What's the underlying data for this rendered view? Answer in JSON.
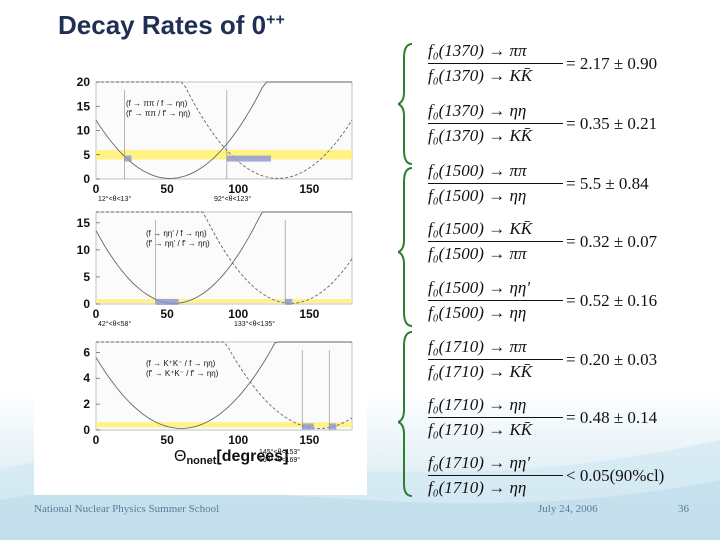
{
  "slide": {
    "title": "Decay Rates of 0",
    "title_sup": "++",
    "footer_left": "National Nuclear Physics Summer School",
    "footer_date": "July 24, 2006",
    "footer_page": "36"
  },
  "plot": {
    "xlabel": "Θ",
    "xlabel_sub": "nonet",
    "xlabel_unit": "[degrees]",
    "panels": [
      {
        "yticks": [
          "20",
          "15",
          "10",
          "5",
          "0"
        ],
        "xticks": [
          "0",
          "50",
          "100",
          "150"
        ],
        "legend": [
          "(f → ππ / f → ηη)",
          "(f' → ππ / f' → ηη)"
        ],
        "band": [
          4.0,
          6.0
        ],
        "ranges": [
          "12°<θ<13°",
          "92°<θ<123°"
        ]
      },
      {
        "yticks": [
          "15",
          "10",
          "5",
          "0"
        ],
        "xticks": [
          "0",
          "50",
          "100",
          "150"
        ],
        "legend": [
          "(f → ηη' / f → ηη)",
          "(f' → ηη' / f' → ηη)"
        ],
        "band": [
          0.2,
          0.9
        ],
        "ranges": [
          "42°<θ<58°",
          "133°<θ<135°"
        ]
      },
      {
        "yticks": [
          "6",
          "4",
          "2",
          "0"
        ],
        "xticks": [
          "0",
          "50",
          "100",
          "150"
        ],
        "legend": [
          "(f → K⁺K⁻ / f → ηη)",
          "(f' → K⁺K⁻ / f' → ηη)"
        ],
        "band": [
          0.2,
          0.6
        ],
        "ranges": [
          "145°<θ<153°",
          "164°<θ<169°"
        ]
      }
    ]
  },
  "ratios": [
    {
      "num": "f₀(1370) → ππ",
      "den": "f₀(1370) → KK̄",
      "result": "= 2.17 ± 0.90"
    },
    {
      "num": "f₀(1370) → ηη",
      "den": "f₀(1370) → KK̄",
      "result": "= 0.35 ± 0.21"
    },
    {
      "num": "f₀(1500) → ππ",
      "den": "f₀(1500) → ηη",
      "result": "= 5.5 ± 0.84"
    },
    {
      "num": "f₀(1500) → KK̄",
      "den": "f₀(1500) → ππ",
      "result": "= 0.32 ± 0.07"
    },
    {
      "num": "f₀(1500) → ηη'",
      "den": "f₀(1500) → ηη",
      "result": "= 0.52 ± 0.16"
    },
    {
      "num": "f₀(1710) → ππ",
      "den": "f₀(1710) → KK̄",
      "result": "= 0.20 ± 0.03"
    },
    {
      "num": "f₀(1710) → ηη",
      "den": "f₀(1710) → KK̄",
      "result": "= 0.48 ± 0.14"
    },
    {
      "num": "f₀(1710) → ηη'",
      "den": "f₀(1710) → ηη",
      "result": "< 0.05(90%cl)"
    }
  ],
  "colors": {
    "title": "#1f2f55",
    "brace": "#2e7d32",
    "band": "#fff27a",
    "footer": "#5a7c96"
  }
}
